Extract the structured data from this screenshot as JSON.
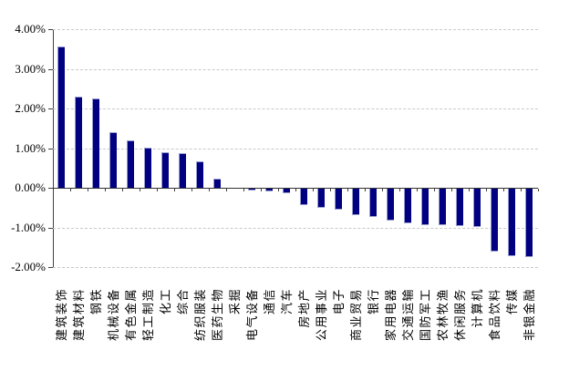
{
  "chart_data": {
    "type": "bar",
    "title": "",
    "xlabel": "",
    "ylabel": "",
    "legend": "none",
    "grid": "horizontal-dashed",
    "ylim": [
      -2,
      4
    ],
    "unit": "%",
    "categories": [
      "建筑装饰",
      "建筑材料",
      "钢铁",
      "机械设备",
      "有色金属",
      "轻工制造",
      "化工",
      "综合",
      "纺织服装",
      "医药生物",
      "采掘",
      "电气设备",
      "通信",
      "汽车",
      "房地产",
      "公用事业",
      "电子",
      "商业贸易",
      "银行",
      "家用电器",
      "交通运输",
      "国防军工",
      "农林牧渔",
      "休闲服务",
      "计算机",
      "食品饮料",
      "传媒",
      "非银金融"
    ],
    "values": [
      3.57,
      2.29,
      2.26,
      1.4,
      1.19,
      1.02,
      0.9,
      0.88,
      0.66,
      0.22,
      0.0,
      -0.05,
      -0.08,
      -0.12,
      -0.42,
      -0.48,
      -0.53,
      -0.67,
      -0.71,
      -0.81,
      -0.87,
      -0.92,
      -0.93,
      -0.95,
      -0.97,
      -1.58,
      -1.7,
      -1.73
    ],
    "yticks": [
      {
        "label": "4.00%",
        "value": 4
      },
      {
        "label": "3.00%",
        "value": 3
      },
      {
        "label": "2.00%",
        "value": 2
      },
      {
        "label": "1.00%",
        "value": 1
      },
      {
        "label": "0.00%",
        "value": 0
      },
      {
        "label": "-1.00%",
        "value": -1
      },
      {
        "label": "-2.00%",
        "value": -2
      }
    ],
    "colors": {
      "bar_fill": "#000080",
      "bar_highlight": "#9a9fd0",
      "gridline": "#c9c9c9",
      "axis": "#404040",
      "background": "#ffffff"
    }
  }
}
